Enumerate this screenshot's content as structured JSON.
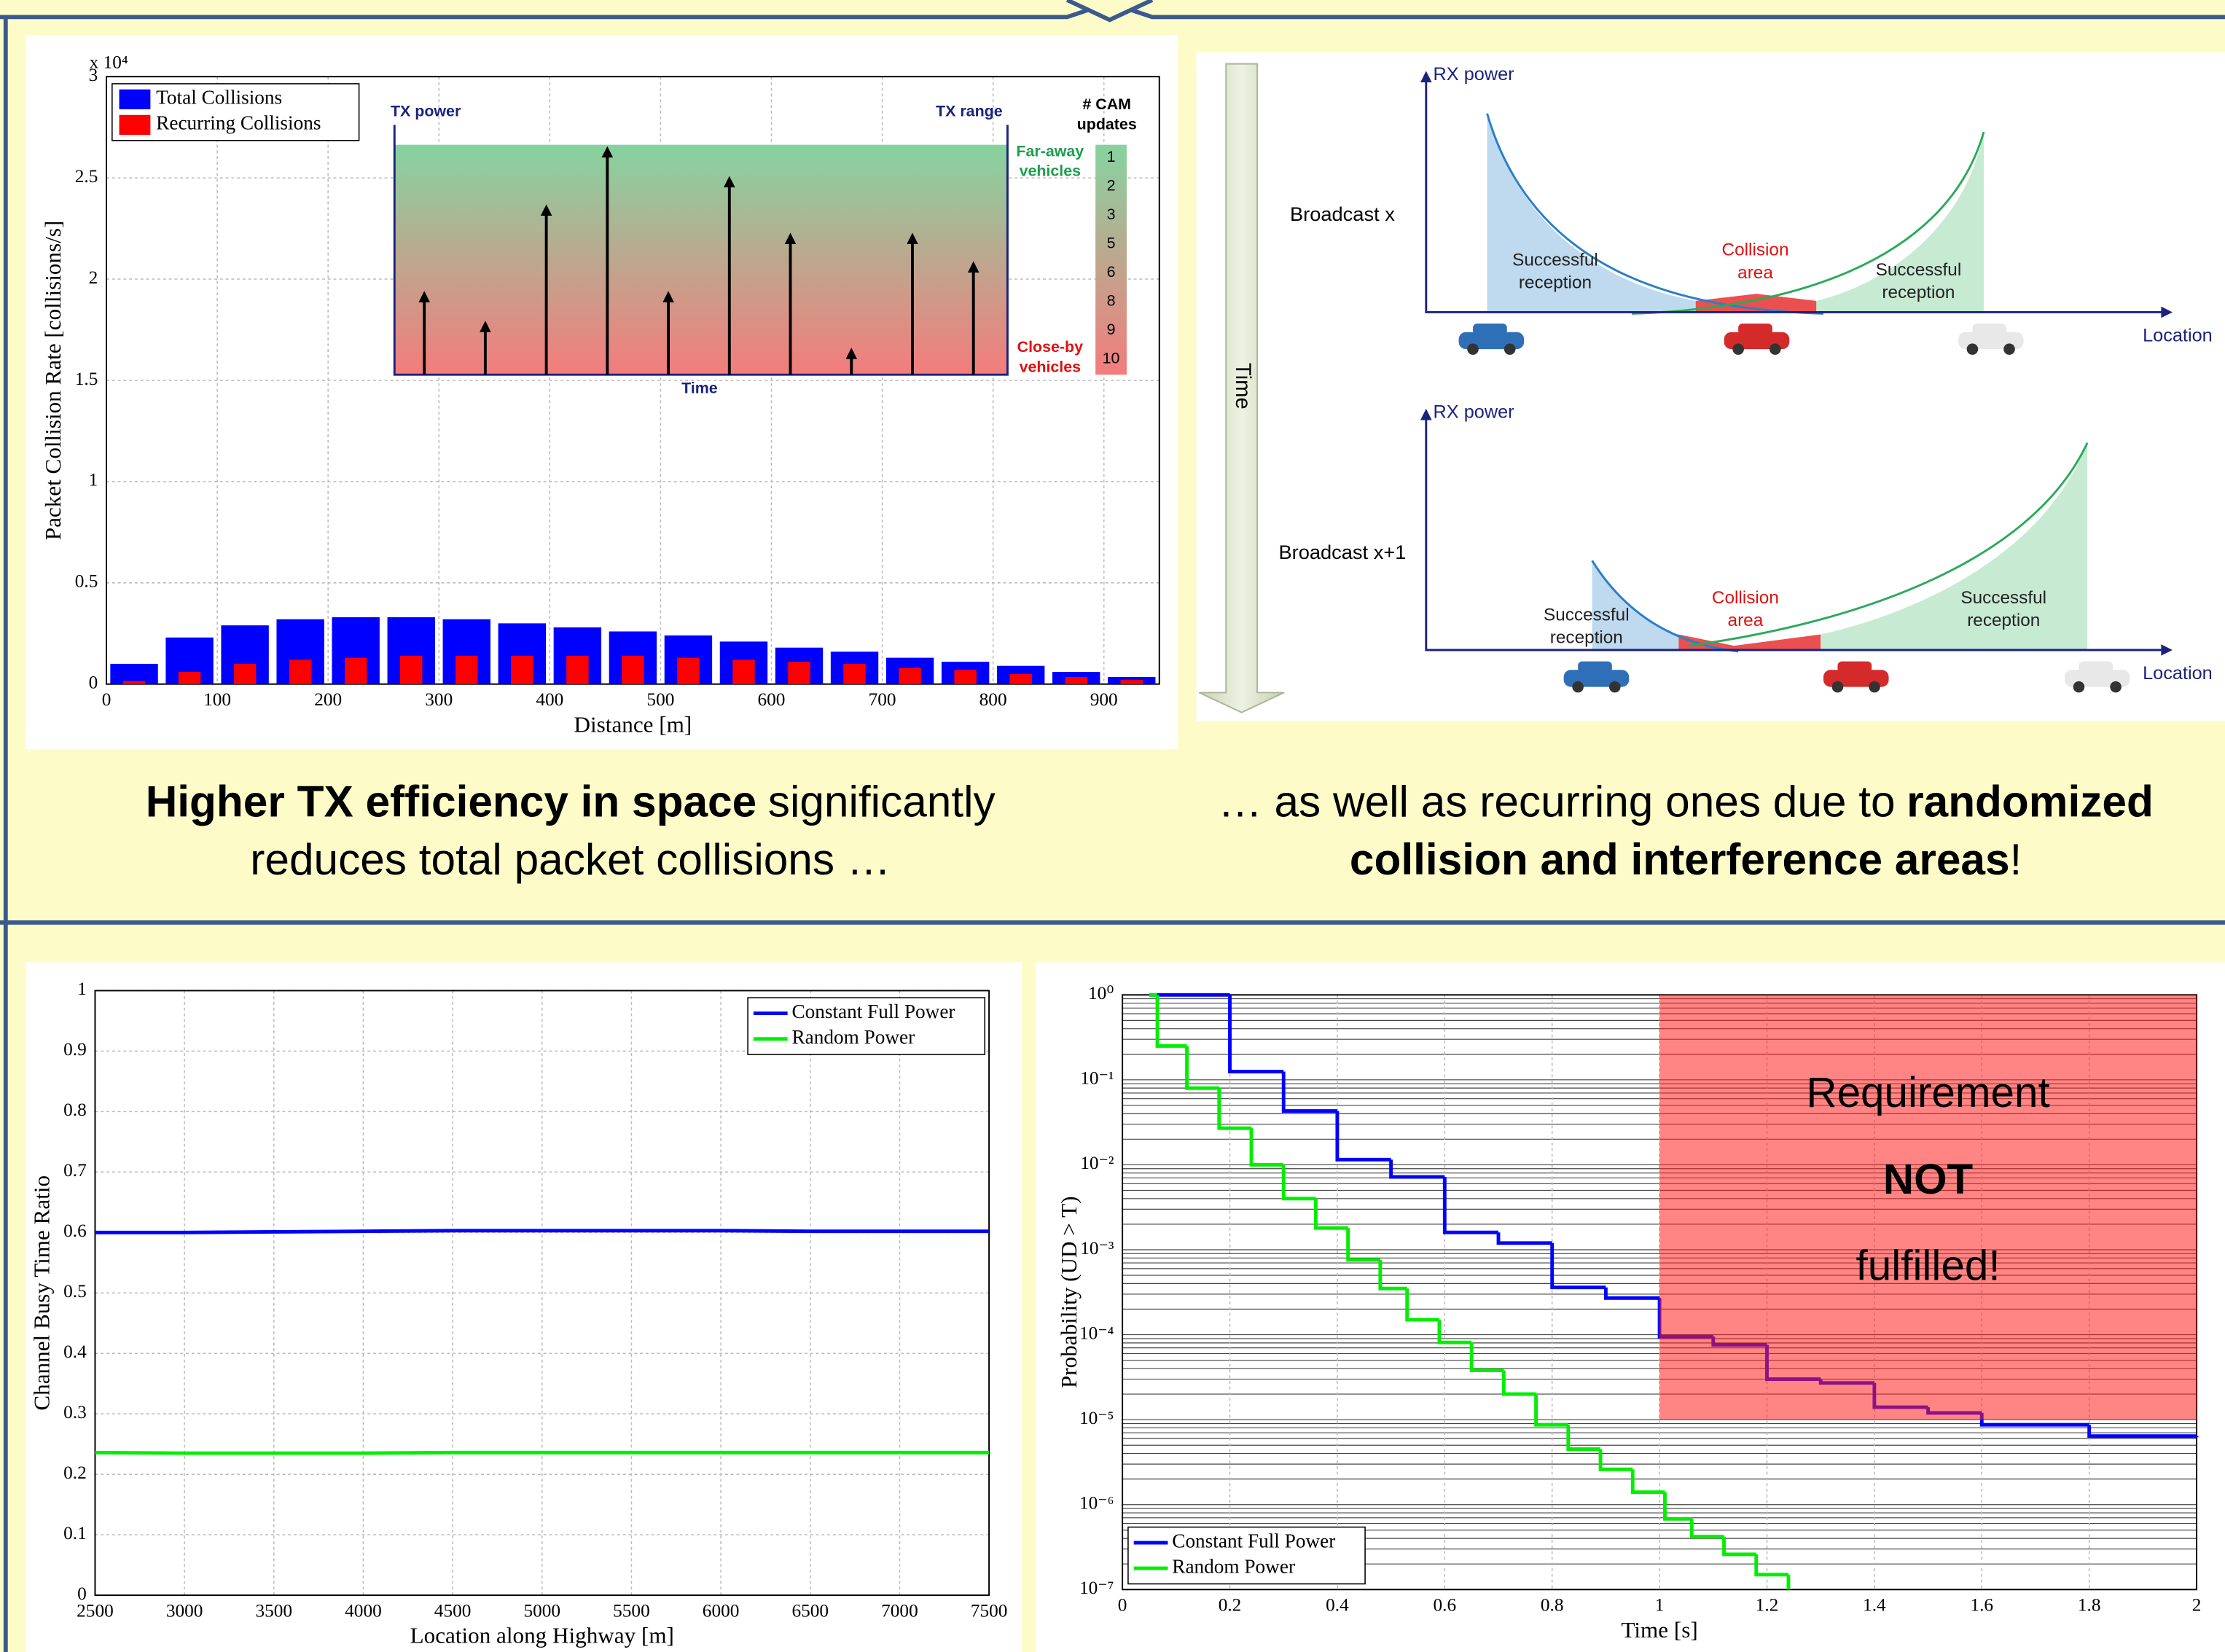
{
  "chart_data": [
    {
      "type": "bar",
      "x": [
        25,
        75,
        125,
        175,
        225,
        275,
        325,
        375,
        425,
        475,
        525,
        575,
        625,
        675,
        725,
        775,
        825,
        875,
        925
      ],
      "series": [
        {
          "name": "Total Collisions",
          "color": "#0000ff",
          "values": [
            0.1,
            0.23,
            0.29,
            0.32,
            0.33,
            0.33,
            0.32,
            0.3,
            0.28,
            0.26,
            0.24,
            0.21,
            0.18,
            0.16,
            0.13,
            0.11,
            0.09,
            0.06,
            0.035
          ]
        },
        {
          "name": "Recurring Collisions",
          "color": "#ff0000",
          "values": [
            0.015,
            0.06,
            0.1,
            0.12,
            0.13,
            0.14,
            0.14,
            0.14,
            0.14,
            0.14,
            0.13,
            0.12,
            0.11,
            0.1,
            0.08,
            0.07,
            0.05,
            0.035,
            0.02
          ]
        }
      ],
      "xlim": [
        0,
        950
      ],
      "xticks": [
        0,
        100,
        200,
        300,
        400,
        500,
        600,
        700,
        800,
        900
      ],
      "ylim": [
        0,
        3
      ],
      "yticks": [
        0,
        0.5,
        1,
        1.5,
        2,
        2.5,
        3
      ],
      "y_multiplier": "x 10⁴",
      "xlabel": "Distance [m]",
      "ylabel": "Packet Collision Rate [collisions/s]",
      "legend": "top-left",
      "grid": true,
      "inset": {
        "y_label": "TX power",
        "x_label": "TX range",
        "time_label": "Time",
        "cam_title": "# CAM updates",
        "far": "Far-away vehicles",
        "close": "Close-by vehicles",
        "cam_values": [
          1,
          2,
          3,
          5,
          6,
          8,
          9,
          10
        ]
      }
    },
    {
      "type": "line",
      "x": [
        2500,
        3000,
        3500,
        4000,
        4500,
        5000,
        5500,
        6000,
        6500,
        7000,
        7500
      ],
      "series": [
        {
          "name": "Constant Full Power",
          "color": "#0000ff",
          "values": [
            0.6,
            0.6,
            0.601,
            0.602,
            0.603,
            0.603,
            0.603,
            0.603,
            0.602,
            0.602,
            0.602
          ]
        },
        {
          "name": "Random Power",
          "color": "#00ee00",
          "values": [
            0.236,
            0.235,
            0.235,
            0.235,
            0.236,
            0.236,
            0.236,
            0.236,
            0.236,
            0.236,
            0.236
          ]
        }
      ],
      "xlim": [
        2500,
        7500
      ],
      "xticks": [
        2500,
        3000,
        3500,
        4000,
        4500,
        5000,
        5500,
        6000,
        6500,
        7000,
        7500
      ],
      "ylim": [
        0,
        1
      ],
      "yticks": [
        0,
        0.1,
        0.2,
        0.3,
        0.4,
        0.5,
        0.6,
        0.7,
        0.8,
        0.9,
        1
      ],
      "xlabel": "Location along Highway [m]",
      "ylabel": "Channel Busy Time Ratio",
      "legend": "top-right",
      "grid": true
    },
    {
      "type": "step",
      "log_y": true,
      "series": [
        {
          "name": "Constant Full Power",
          "color": "#0000ff",
          "x": [
            0.05,
            0.2,
            0.3,
            0.4,
            0.5,
            0.6,
            0.7,
            0.8,
            0.9,
            1.0,
            1.1,
            1.2,
            1.3,
            1.4,
            1.5,
            1.6,
            1.8,
            2.0
          ],
          "values": [
            1,
            0.125,
            0.043,
            0.0115,
            0.0072,
            0.0016,
            0.0012,
            0.00036,
            0.00027,
            9.5e-05,
            7.6e-05,
            3e-05,
            2.7e-05,
            1.4e-05,
            1.2e-05,
            8.7e-06,
            6.4e-06,
            6.2e-06
          ]
        },
        {
          "name": "Random Power",
          "color": "#00ee00",
          "x": [
            0.05,
            0.065,
            0.12,
            0.18,
            0.24,
            0.3,
            0.36,
            0.42,
            0.48,
            0.53,
            0.59,
            0.65,
            0.71,
            0.77,
            0.83,
            0.89,
            0.95,
            1.01,
            1.06,
            1.12,
            1.18,
            1.24
          ],
          "values": [
            1,
            0.25,
            0.08,
            0.027,
            0.01,
            0.004,
            0.0018,
            0.00076,
            0.00035,
            0.00015,
            8.1e-05,
            3.8e-05,
            2e-05,
            8.7e-06,
            4.5e-06,
            2.6e-06,
            1.4e-06,
            6.8e-07,
            4.2e-07,
            2.6e-07,
            1.5e-07,
            1e-07
          ]
        }
      ],
      "xlim": [
        0,
        2
      ],
      "xticks": [
        0,
        0.2,
        0.4,
        0.6,
        0.8,
        1,
        1.2,
        1.4,
        1.6,
        1.8,
        2
      ],
      "ylim": [
        1e-07,
        1
      ],
      "yticks": [
        {
          "value": 1,
          "label": "10⁰"
        },
        {
          "value": 0.1,
          "label": "10⁻¹"
        },
        {
          "value": 0.01,
          "label": "10⁻²"
        },
        {
          "value": 0.001,
          "label": "10⁻³"
        },
        {
          "value": 0.0001,
          "label": "10⁻⁴"
        },
        {
          "value": 1e-05,
          "label": "10⁻⁵"
        },
        {
          "value": 1e-06,
          "label": "10⁻⁶"
        },
        {
          "value": 1e-07,
          "label": "10⁻⁷"
        }
      ],
      "xlabel": "Time [s]",
      "ylabel": "Probability (UD > T)",
      "legend": "bottom-left",
      "grid": true,
      "shaded_region": {
        "xlim": [
          1,
          2
        ],
        "ylim": [
          1e-05,
          1
        ],
        "color": "#ff2020",
        "lines": [
          {
            "text": "Requirement"
          },
          {
            "text": "NOT",
            "bold": true
          },
          {
            "text": "fulfilled!"
          }
        ]
      }
    }
  ],
  "diagram": {
    "time_label": "Time",
    "panels": [
      {
        "title": "Broadcast x",
        "y_label": "RX power",
        "x_label": "Location",
        "left": "Successful reception",
        "center": "Collision area",
        "right": "Successful reception"
      },
      {
        "title": "Broadcast x+1",
        "y_label": "RX power",
        "x_label": "Location",
        "left": "Successful reception",
        "center": "Collision area",
        "right": "Successful reception"
      }
    ]
  },
  "captions": [
    {
      "lines": [
        [
          {
            "text": "Higher TX efficiency in space",
            "bold": true
          },
          {
            "text": "significantly"
          }
        ],
        [
          {
            "text": "reduces total packet collisions …"
          }
        ]
      ]
    },
    {
      "lines": [
        [
          {
            "text": "… as well as recurring ones due to"
          },
          {
            "text": "randomized",
            "bold": true
          }
        ],
        [
          {
            "text": "collision and interference areas",
            "bold": true
          },
          {
            "text": "!"
          }
        ]
      ]
    }
  ]
}
